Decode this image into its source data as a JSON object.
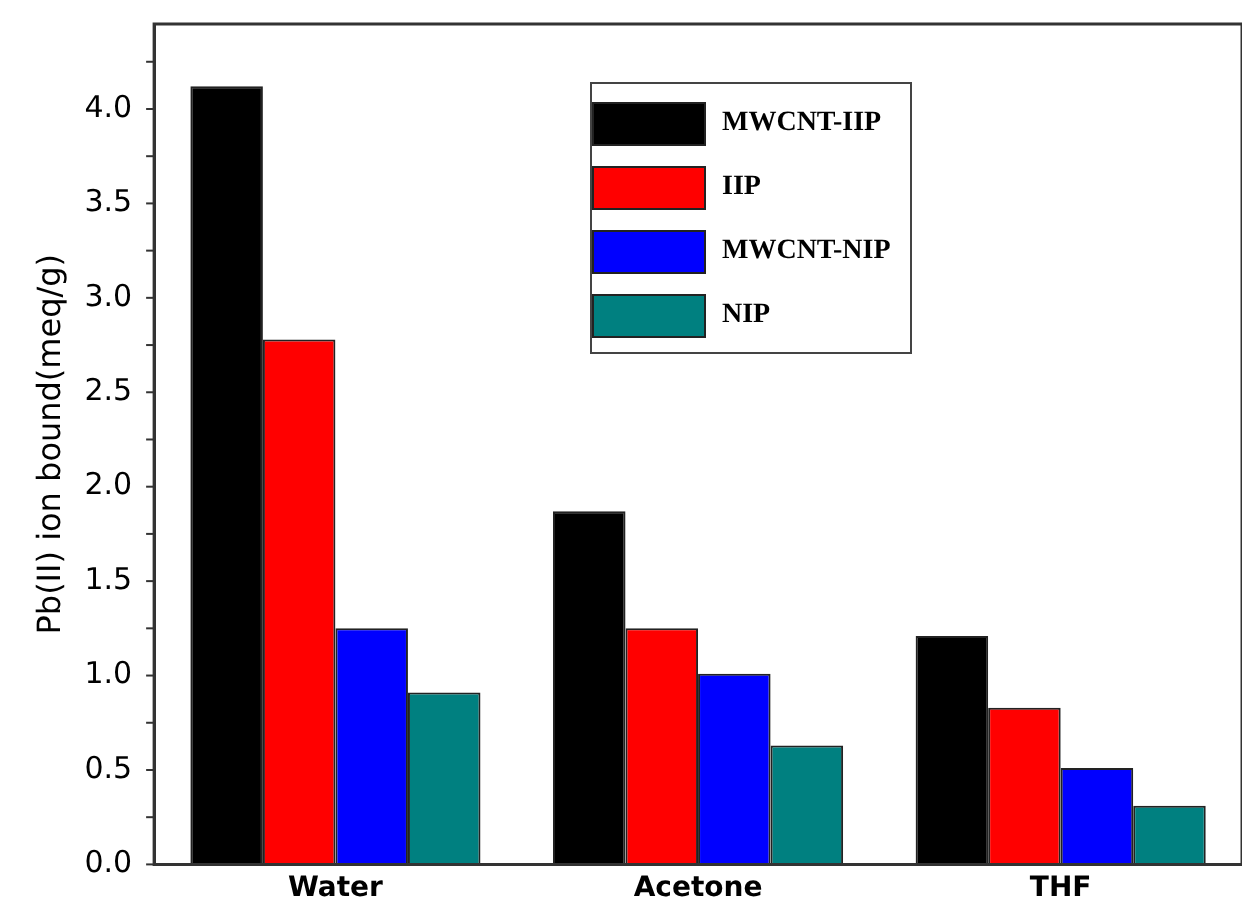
{
  "chart_data": {
    "type": "bar",
    "ylabel": "Pb(II) ion bound(meq/g)",
    "categories": [
      "Water",
      "Acetone",
      "THF"
    ],
    "series": [
      {
        "name": "MWCNT-IIP",
        "color": "#000000",
        "values": [
          4.12,
          1.87,
          1.21
        ]
      },
      {
        "name": "IIP",
        "color": "#ff0000",
        "values": [
          2.78,
          1.25,
          0.83
        ]
      },
      {
        "name": "MWCNT-NIP",
        "color": "#0000ff",
        "values": [
          1.25,
          1.01,
          0.51
        ]
      },
      {
        "name": "NIP",
        "color": "#008080",
        "values": [
          0.91,
          0.63,
          0.31
        ]
      }
    ],
    "ylim": [
      0,
      4.45
    ],
    "yticks": [
      {
        "value": 0,
        "label": "0.0"
      },
      0.5,
      {
        "value": 1,
        "label": "1.0"
      },
      1.5,
      {
        "value": 2,
        "label": "2.0"
      },
      2.5,
      {
        "value": 3,
        "label": "3.0"
      },
      3.5,
      {
        "value": 4,
        "label": "4.0"
      }
    ],
    "grid": false,
    "legend": "top right"
  }
}
